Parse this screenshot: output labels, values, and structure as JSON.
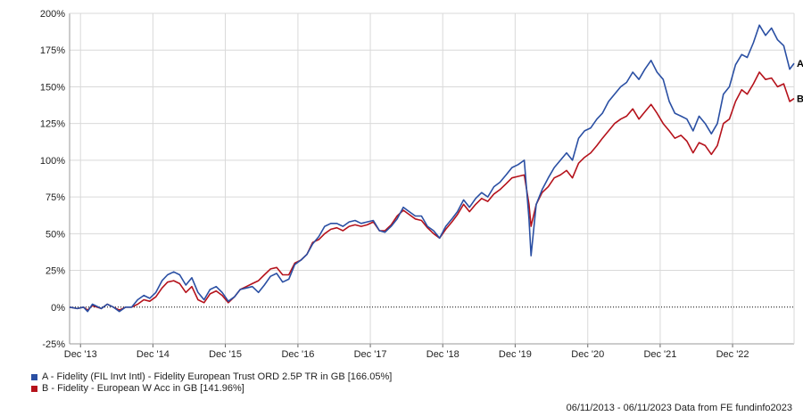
{
  "chart_data": {
    "type": "line",
    "x_start": "06/11/2013",
    "x_end": "06/11/2023",
    "x_ticks": [
      "Dec '13",
      "Dec '14",
      "Dec '15",
      "Dec '16",
      "Dec '17",
      "Dec '18",
      "Dec '19",
      "Dec '20",
      "Dec '21",
      "Dec '22"
    ],
    "y_ticks": [
      "200%",
      "175%",
      "150%",
      "125%",
      "100%",
      "75%",
      "50%",
      "25%",
      "0%",
      "-25%"
    ],
    "ylim": [
      -25,
      200
    ],
    "grid": true,
    "series": [
      {
        "name": "A - Fidelity (FIL Invt Intl) - Fidelity European Trust ORD 2.5P TR in GB [166.05%]",
        "end_label": "A",
        "color": "#2a4fa3",
        "values": [
          [
            "2013-11-06",
            0
          ],
          [
            "2013-12-15",
            -1
          ],
          [
            "2014-01-15",
            0
          ],
          [
            "2014-02-05",
            -3
          ],
          [
            "2014-03-01",
            2
          ],
          [
            "2014-04-15",
            -1
          ],
          [
            "2014-05-15",
            2
          ],
          [
            "2014-06-15",
            0
          ],
          [
            "2014-07-15",
            -3
          ],
          [
            "2014-08-15",
            0
          ],
          [
            "2014-09-15",
            0
          ],
          [
            "2014-10-15",
            5
          ],
          [
            "2014-11-15",
            8
          ],
          [
            "2014-12-15",
            6
          ],
          [
            "2015-01-15",
            10
          ],
          [
            "2015-02-15",
            18
          ],
          [
            "2015-03-15",
            22
          ],
          [
            "2015-04-15",
            24
          ],
          [
            "2015-05-15",
            22
          ],
          [
            "2015-06-15",
            15
          ],
          [
            "2015-07-15",
            20
          ],
          [
            "2015-08-15",
            10
          ],
          [
            "2015-09-15",
            5
          ],
          [
            "2015-10-15",
            12
          ],
          [
            "2015-11-15",
            14
          ],
          [
            "2015-12-15",
            10
          ],
          [
            "2016-01-15",
            4
          ],
          [
            "2016-02-15",
            7
          ],
          [
            "2016-03-15",
            12
          ],
          [
            "2016-04-15",
            13
          ],
          [
            "2016-05-15",
            14
          ],
          [
            "2016-06-15",
            10
          ],
          [
            "2016-07-15",
            15
          ],
          [
            "2016-08-15",
            21
          ],
          [
            "2016-09-15",
            23
          ],
          [
            "2016-10-15",
            17
          ],
          [
            "2016-11-15",
            19
          ],
          [
            "2016-12-15",
            29
          ],
          [
            "2017-01-15",
            32
          ],
          [
            "2017-02-15",
            36
          ],
          [
            "2017-03-15",
            43
          ],
          [
            "2017-04-15",
            48
          ],
          [
            "2017-05-15",
            55
          ],
          [
            "2017-06-15",
            57
          ],
          [
            "2017-07-15",
            57
          ],
          [
            "2017-08-15",
            55
          ],
          [
            "2017-09-15",
            58
          ],
          [
            "2017-10-15",
            59
          ],
          [
            "2017-11-15",
            57
          ],
          [
            "2017-12-15",
            58
          ],
          [
            "2018-01-15",
            59
          ],
          [
            "2018-02-15",
            52
          ],
          [
            "2018-03-15",
            51
          ],
          [
            "2018-04-15",
            55
          ],
          [
            "2018-05-15",
            60
          ],
          [
            "2018-06-15",
            68
          ],
          [
            "2018-07-15",
            65
          ],
          [
            "2018-08-15",
            62
          ],
          [
            "2018-09-15",
            62
          ],
          [
            "2018-10-15",
            55
          ],
          [
            "2018-11-15",
            52
          ],
          [
            "2018-12-15",
            47
          ],
          [
            "2019-01-15",
            55
          ],
          [
            "2019-02-15",
            60
          ],
          [
            "2019-03-15",
            65
          ],
          [
            "2019-04-15",
            73
          ],
          [
            "2019-05-15",
            68
          ],
          [
            "2019-06-15",
            74
          ],
          [
            "2019-07-15",
            78
          ],
          [
            "2019-08-15",
            75
          ],
          [
            "2019-09-15",
            82
          ],
          [
            "2019-10-15",
            85
          ],
          [
            "2019-11-15",
            90
          ],
          [
            "2019-12-15",
            95
          ],
          [
            "2020-01-15",
            97
          ],
          [
            "2020-02-15",
            100
          ],
          [
            "2020-03-10",
            60
          ],
          [
            "2020-03-20",
            35
          ],
          [
            "2020-04-15",
            70
          ],
          [
            "2020-05-15",
            80
          ],
          [
            "2020-06-15",
            88
          ],
          [
            "2020-07-15",
            95
          ],
          [
            "2020-08-15",
            100
          ],
          [
            "2020-09-15",
            105
          ],
          [
            "2020-10-15",
            100
          ],
          [
            "2020-11-15",
            115
          ],
          [
            "2020-12-15",
            120
          ],
          [
            "2021-01-15",
            122
          ],
          [
            "2021-02-15",
            128
          ],
          [
            "2021-03-15",
            132
          ],
          [
            "2021-04-15",
            140
          ],
          [
            "2021-05-15",
            145
          ],
          [
            "2021-06-15",
            150
          ],
          [
            "2021-07-15",
            153
          ],
          [
            "2021-08-15",
            160
          ],
          [
            "2021-09-15",
            155
          ],
          [
            "2021-10-15",
            162
          ],
          [
            "2021-11-15",
            168
          ],
          [
            "2021-12-15",
            160
          ],
          [
            "2022-01-15",
            155
          ],
          [
            "2022-02-15",
            140
          ],
          [
            "2022-03-15",
            132
          ],
          [
            "2022-04-15",
            130
          ],
          [
            "2022-05-15",
            128
          ],
          [
            "2022-06-15",
            120
          ],
          [
            "2022-07-15",
            130
          ],
          [
            "2022-08-15",
            125
          ],
          [
            "2022-09-15",
            118
          ],
          [
            "2022-10-15",
            125
          ],
          [
            "2022-11-15",
            145
          ],
          [
            "2022-12-15",
            150
          ],
          [
            "2023-01-15",
            165
          ],
          [
            "2023-02-15",
            172
          ],
          [
            "2023-03-15",
            170
          ],
          [
            "2023-04-15",
            180
          ],
          [
            "2023-05-15",
            192
          ],
          [
            "2023-06-15",
            185
          ],
          [
            "2023-07-15",
            190
          ],
          [
            "2023-08-15",
            182
          ],
          [
            "2023-09-15",
            178
          ],
          [
            "2023-10-15",
            162
          ],
          [
            "2023-11-06",
            166
          ]
        ]
      },
      {
        "name": "B - Fidelity - European W Acc in GB [141.96%]",
        "end_label": "B",
        "color": "#b5121b",
        "values": [
          [
            "2013-11-06",
            0
          ],
          [
            "2013-12-15",
            -1
          ],
          [
            "2014-01-15",
            0
          ],
          [
            "2014-02-05",
            -2
          ],
          [
            "2014-03-01",
            1
          ],
          [
            "2014-04-15",
            -1
          ],
          [
            "2014-05-15",
            2
          ],
          [
            "2014-06-15",
            0
          ],
          [
            "2014-07-15",
            -2
          ],
          [
            "2014-08-15",
            0
          ],
          [
            "2014-09-15",
            0
          ],
          [
            "2014-10-15",
            2
          ],
          [
            "2014-11-15",
            5
          ],
          [
            "2014-12-15",
            4
          ],
          [
            "2015-01-15",
            7
          ],
          [
            "2015-02-15",
            13
          ],
          [
            "2015-03-15",
            17
          ],
          [
            "2015-04-15",
            18
          ],
          [
            "2015-05-15",
            16
          ],
          [
            "2015-06-15",
            10
          ],
          [
            "2015-07-15",
            14
          ],
          [
            "2015-08-15",
            5
          ],
          [
            "2015-09-15",
            3
          ],
          [
            "2015-10-15",
            9
          ],
          [
            "2015-11-15",
            11
          ],
          [
            "2015-12-15",
            8
          ],
          [
            "2016-01-15",
            3
          ],
          [
            "2016-02-15",
            7
          ],
          [
            "2016-03-15",
            12
          ],
          [
            "2016-04-15",
            14
          ],
          [
            "2016-05-15",
            16
          ],
          [
            "2016-06-15",
            18
          ],
          [
            "2016-07-15",
            22
          ],
          [
            "2016-08-15",
            26
          ],
          [
            "2016-09-15",
            27
          ],
          [
            "2016-10-15",
            22
          ],
          [
            "2016-11-15",
            22
          ],
          [
            "2016-12-15",
            30
          ],
          [
            "2017-01-15",
            32
          ],
          [
            "2017-02-15",
            36
          ],
          [
            "2017-03-15",
            44
          ],
          [
            "2017-04-15",
            46
          ],
          [
            "2017-05-15",
            50
          ],
          [
            "2017-06-15",
            53
          ],
          [
            "2017-07-15",
            54
          ],
          [
            "2017-08-15",
            52
          ],
          [
            "2017-09-15",
            55
          ],
          [
            "2017-10-15",
            56
          ],
          [
            "2017-11-15",
            55
          ],
          [
            "2017-12-15",
            56
          ],
          [
            "2018-01-15",
            58
          ],
          [
            "2018-02-15",
            52
          ],
          [
            "2018-03-15",
            52
          ],
          [
            "2018-04-15",
            56
          ],
          [
            "2018-05-15",
            62
          ],
          [
            "2018-06-15",
            66
          ],
          [
            "2018-07-15",
            63
          ],
          [
            "2018-08-15",
            60
          ],
          [
            "2018-09-15",
            59
          ],
          [
            "2018-10-15",
            54
          ],
          [
            "2018-11-15",
            50
          ],
          [
            "2018-12-15",
            47
          ],
          [
            "2019-01-15",
            53
          ],
          [
            "2019-02-15",
            58
          ],
          [
            "2019-03-15",
            63
          ],
          [
            "2019-04-15",
            70
          ],
          [
            "2019-05-15",
            65
          ],
          [
            "2019-06-15",
            70
          ],
          [
            "2019-07-15",
            74
          ],
          [
            "2019-08-15",
            72
          ],
          [
            "2019-09-15",
            77
          ],
          [
            "2019-10-15",
            80
          ],
          [
            "2019-11-15",
            84
          ],
          [
            "2019-12-15",
            88
          ],
          [
            "2020-01-15",
            89
          ],
          [
            "2020-02-15",
            90
          ],
          [
            "2020-03-10",
            70
          ],
          [
            "2020-03-20",
            55
          ],
          [
            "2020-04-15",
            70
          ],
          [
            "2020-05-15",
            78
          ],
          [
            "2020-06-15",
            82
          ],
          [
            "2020-07-15",
            88
          ],
          [
            "2020-08-15",
            90
          ],
          [
            "2020-09-15",
            93
          ],
          [
            "2020-10-15",
            88
          ],
          [
            "2020-11-15",
            98
          ],
          [
            "2020-12-15",
            102
          ],
          [
            "2021-01-15",
            105
          ],
          [
            "2021-02-15",
            110
          ],
          [
            "2021-03-15",
            115
          ],
          [
            "2021-04-15",
            120
          ],
          [
            "2021-05-15",
            125
          ],
          [
            "2021-06-15",
            128
          ],
          [
            "2021-07-15",
            130
          ],
          [
            "2021-08-15",
            135
          ],
          [
            "2021-09-15",
            128
          ],
          [
            "2021-10-15",
            133
          ],
          [
            "2021-11-15",
            138
          ],
          [
            "2021-12-15",
            132
          ],
          [
            "2022-01-15",
            125
          ],
          [
            "2022-02-15",
            120
          ],
          [
            "2022-03-15",
            115
          ],
          [
            "2022-04-15",
            117
          ],
          [
            "2022-05-15",
            113
          ],
          [
            "2022-06-15",
            105
          ],
          [
            "2022-07-15",
            112
          ],
          [
            "2022-08-15",
            110
          ],
          [
            "2022-09-15",
            104
          ],
          [
            "2022-10-15",
            110
          ],
          [
            "2022-11-15",
            125
          ],
          [
            "2022-12-15",
            128
          ],
          [
            "2023-01-15",
            140
          ],
          [
            "2023-02-15",
            148
          ],
          [
            "2023-03-15",
            145
          ],
          [
            "2023-04-15",
            152
          ],
          [
            "2023-05-15",
            160
          ],
          [
            "2023-06-15",
            155
          ],
          [
            "2023-07-15",
            156
          ],
          [
            "2023-08-15",
            150
          ],
          [
            "2023-09-15",
            152
          ],
          [
            "2023-10-15",
            140
          ],
          [
            "2023-11-06",
            142
          ]
        ]
      }
    ]
  },
  "legend": [
    {
      "label": "A - Fidelity (FIL Invt Intl) - Fidelity European Trust ORD 2.5P TR in GB [166.05%]",
      "color": "#2a4fa3"
    },
    {
      "label": "B - Fidelity - European W Acc in GB [141.96%]",
      "color": "#b5121b"
    }
  ],
  "footer": "06/11/2013 - 06/11/2023 Data from FE fundinfo2023"
}
